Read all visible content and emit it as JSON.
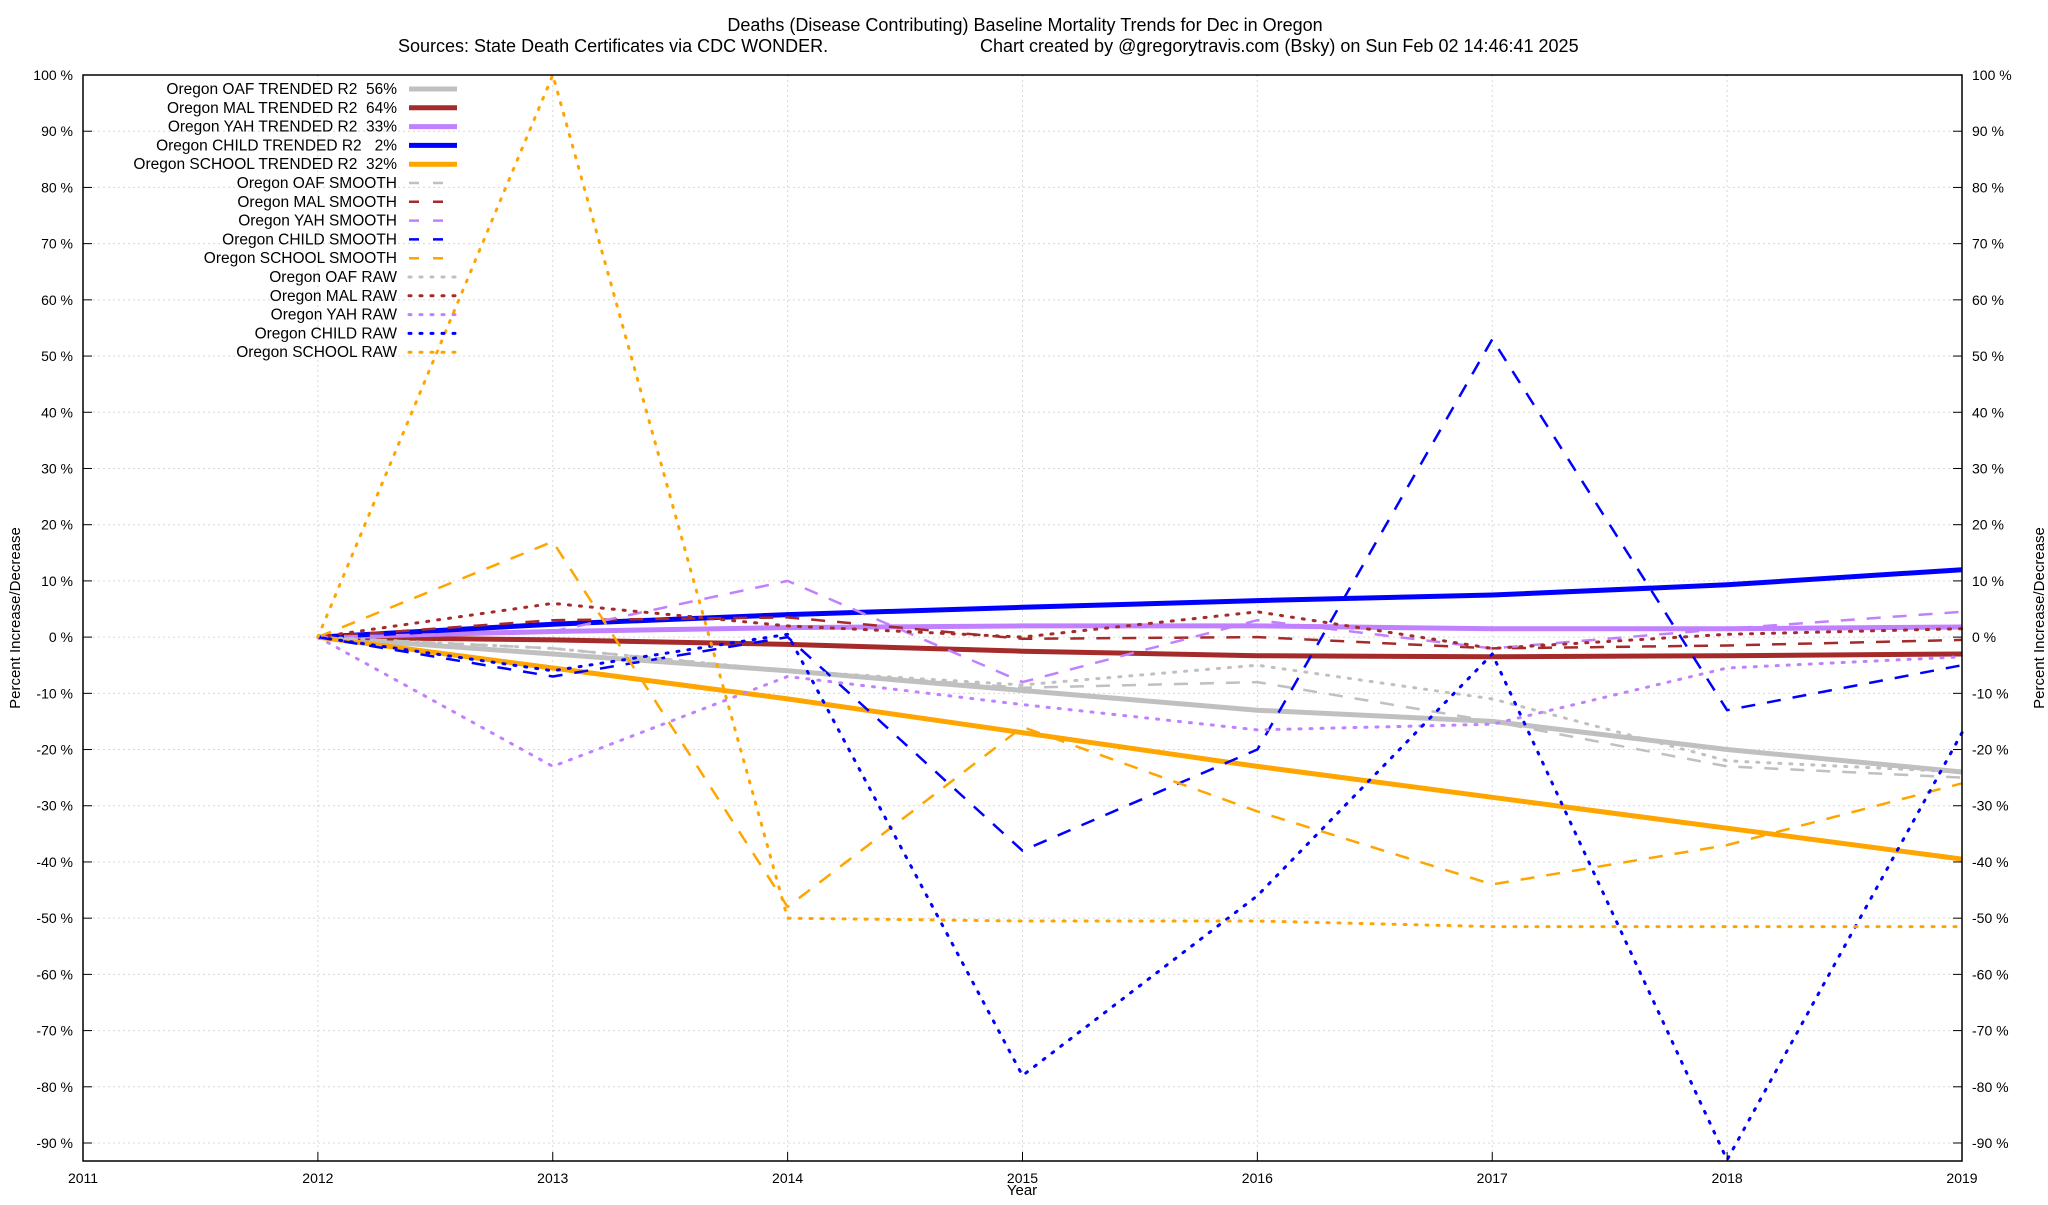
{
  "chart_data": {
    "type": "line",
    "title": "Deaths (Disease Contributing)  Baseline Mortality Trends for Dec in Oregon",
    "subtitle_left": "Sources: State Death Certificates via CDC WONDER.",
    "subtitle_right": "Chart created by @gregorytravis.com (Bsky) on Sun Feb 02 14:46:41 2025",
    "xlabel": "Year",
    "ylabel": "Percent Increase/Decrease",
    "y2label": "Percent Increase/Decrease",
    "xlim": [
      2011,
      2019
    ],
    "ylim": [
      -93.2,
      100
    ],
    "x_ticks": [
      "2011",
      "2012",
      "2013",
      "2014",
      "2015",
      "2016",
      "2017",
      "2018",
      "2019"
    ],
    "y_ticks": [
      "100 %",
      "90 %",
      "80 %",
      "70 %",
      "60 %",
      "50 %",
      "40 %",
      "30 %",
      "20 %",
      "10 %",
      "0 %",
      "-10 %",
      "-20 %",
      "-30 %",
      "-40 %",
      "-50 %",
      "-60 %",
      "-70 %",
      "-80 %",
      "-90 %"
    ],
    "grid": true,
    "legend_position": "top-left",
    "x": [
      2012,
      2013,
      2014,
      2015,
      2016,
      2017,
      2018,
      2019
    ],
    "series": [
      {
        "name": "Oregon OAF TRENDED R2  56%",
        "style": "solid",
        "color": "#c0c0c0",
        "values": [
          0,
          -3,
          -6,
          -9.5,
          -13,
          -15,
          -20,
          -24
        ]
      },
      {
        "name": "Oregon MAL TRENDED R2  64%",
        "style": "solid",
        "color": "#a52a2a",
        "values": [
          0,
          -0.5,
          -1.3,
          -2.5,
          -3.3,
          -3.5,
          -3.3,
          -3
        ]
      },
      {
        "name": "Oregon YAH TRENDED R2  33%",
        "style": "solid",
        "color": "#c080ff",
        "values": [
          0,
          1,
          1.7,
          2,
          2,
          1.5,
          1.5,
          1.8
        ]
      },
      {
        "name": "Oregon CHILD TRENDED R2   2%",
        "style": "solid",
        "color": "#0000ff",
        "values": [
          0,
          2.3,
          4,
          5.3,
          6.5,
          7.5,
          9.3,
          12
        ]
      },
      {
        "name": "Oregon SCHOOL TRENDED R2  32%",
        "style": "solid",
        "color": "#ffa500",
        "values": [
          0,
          -5.5,
          -11,
          -17,
          -23,
          -28.5,
          -34,
          -39.5
        ]
      },
      {
        "name": "Oregon OAF SMOOTH",
        "style": "dashed",
        "color": "#c0c0c0",
        "values": [
          0,
          -2,
          -6,
          -9,
          -8,
          -15,
          -23,
          -25
        ]
      },
      {
        "name": "Oregon MAL SMOOTH",
        "style": "dashed",
        "color": "#a52a2a",
        "values": [
          0,
          3,
          3.5,
          -0.3,
          0,
          -2,
          -1.5,
          -0.5
        ]
      },
      {
        "name": "Oregon YAH SMOOTH",
        "style": "dashed",
        "color": "#c080ff",
        "values": [
          0,
          1,
          10,
          -8,
          3,
          -2,
          1.5,
          4.5
        ]
      },
      {
        "name": "Oregon CHILD SMOOTH",
        "style": "dashed",
        "color": "#0000ff",
        "values": [
          0,
          -7,
          0,
          -38,
          -20,
          53,
          -13,
          -5
        ]
      },
      {
        "name": "Oregon SCHOOL SMOOTH",
        "style": "dashed",
        "color": "#ffa500",
        "values": [
          0,
          17,
          -48,
          -16,
          -31,
          -44,
          -37,
          -26
        ]
      },
      {
        "name": "Oregon OAF RAW",
        "style": "dotted",
        "color": "#c0c0c0",
        "values": [
          0,
          -2,
          -6,
          -8.5,
          -5,
          -11,
          -22,
          -24
        ]
      },
      {
        "name": "Oregon MAL RAW",
        "style": "dotted",
        "color": "#a52a2a",
        "values": [
          0,
          6,
          2,
          0,
          4.5,
          -2,
          0.5,
          1.5
        ]
      },
      {
        "name": "Oregon YAH RAW",
        "style": "dotted",
        "color": "#c080ff",
        "values": [
          0,
          -23,
          -7,
          -12,
          -16.5,
          -15.5,
          -5.5,
          -3.5
        ]
      },
      {
        "name": "Oregon CHILD RAW",
        "style": "dotted",
        "color": "#0000ff",
        "values": [
          0,
          -6,
          0.5,
          -78,
          -46,
          -3,
          -93,
          -17
        ]
      },
      {
        "name": "Oregon SCHOOL RAW",
        "style": "dotted",
        "color": "#ffa500",
        "values": [
          0,
          100,
          -50,
          -50.5,
          -50.5,
          -51.5,
          -51.5,
          -51.5
        ]
      }
    ]
  }
}
